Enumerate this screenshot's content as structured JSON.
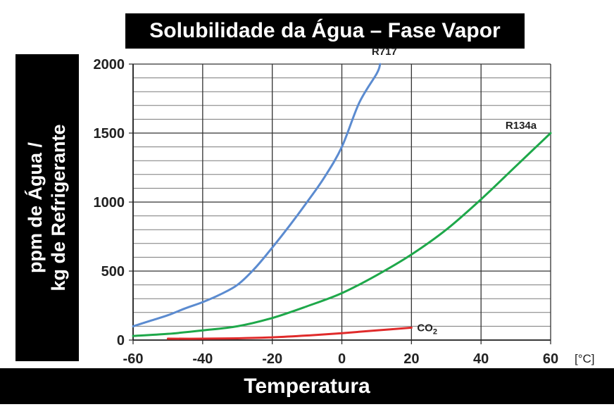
{
  "chart_data": {
    "type": "line",
    "title": "Solubilidade da Água – Fase Vapor",
    "ylabel_lines": [
      "ppm de Água /",
      "kg de Refrigerante"
    ],
    "xlabel": "Temperatura",
    "x_unit": "[°C]",
    "xlim": [
      -60,
      60
    ],
    "ylim": [
      0,
      2000
    ],
    "x_ticks": [
      -60,
      -40,
      -20,
      0,
      20,
      40,
      60
    ],
    "y_ticks": [
      0,
      500,
      1000,
      1500,
      2000
    ],
    "grid": true,
    "series": [
      {
        "name": "R717",
        "color": "#5b8bd0",
        "x": [
          -60,
          -55,
          -50,
          -45,
          -40,
          -35,
          -30,
          -25,
          -20,
          -15,
          -10,
          -5,
          0,
          5,
          10,
          11
        ],
        "y": [
          100,
          140,
          180,
          230,
          275,
          330,
          400,
          520,
          670,
          830,
          1000,
          1180,
          1400,
          1720,
          1930,
          2000
        ]
      },
      {
        "name": "R134a",
        "color": "#1ea84a",
        "x": [
          -60,
          -50,
          -40,
          -30,
          -20,
          -10,
          0,
          10,
          20,
          30,
          40,
          50,
          60
        ],
        "y": [
          30,
          45,
          70,
          100,
          160,
          245,
          340,
          470,
          620,
          800,
          1020,
          1260,
          1500
        ]
      },
      {
        "name": "CO",
        "name_subscript": "2",
        "color": "#e02b2b",
        "x": [
          -50,
          -40,
          -30,
          -20,
          -10,
          0,
          10,
          20
        ],
        "y": [
          10,
          10,
          13,
          20,
          33,
          50,
          70,
          90
        ]
      }
    ]
  }
}
